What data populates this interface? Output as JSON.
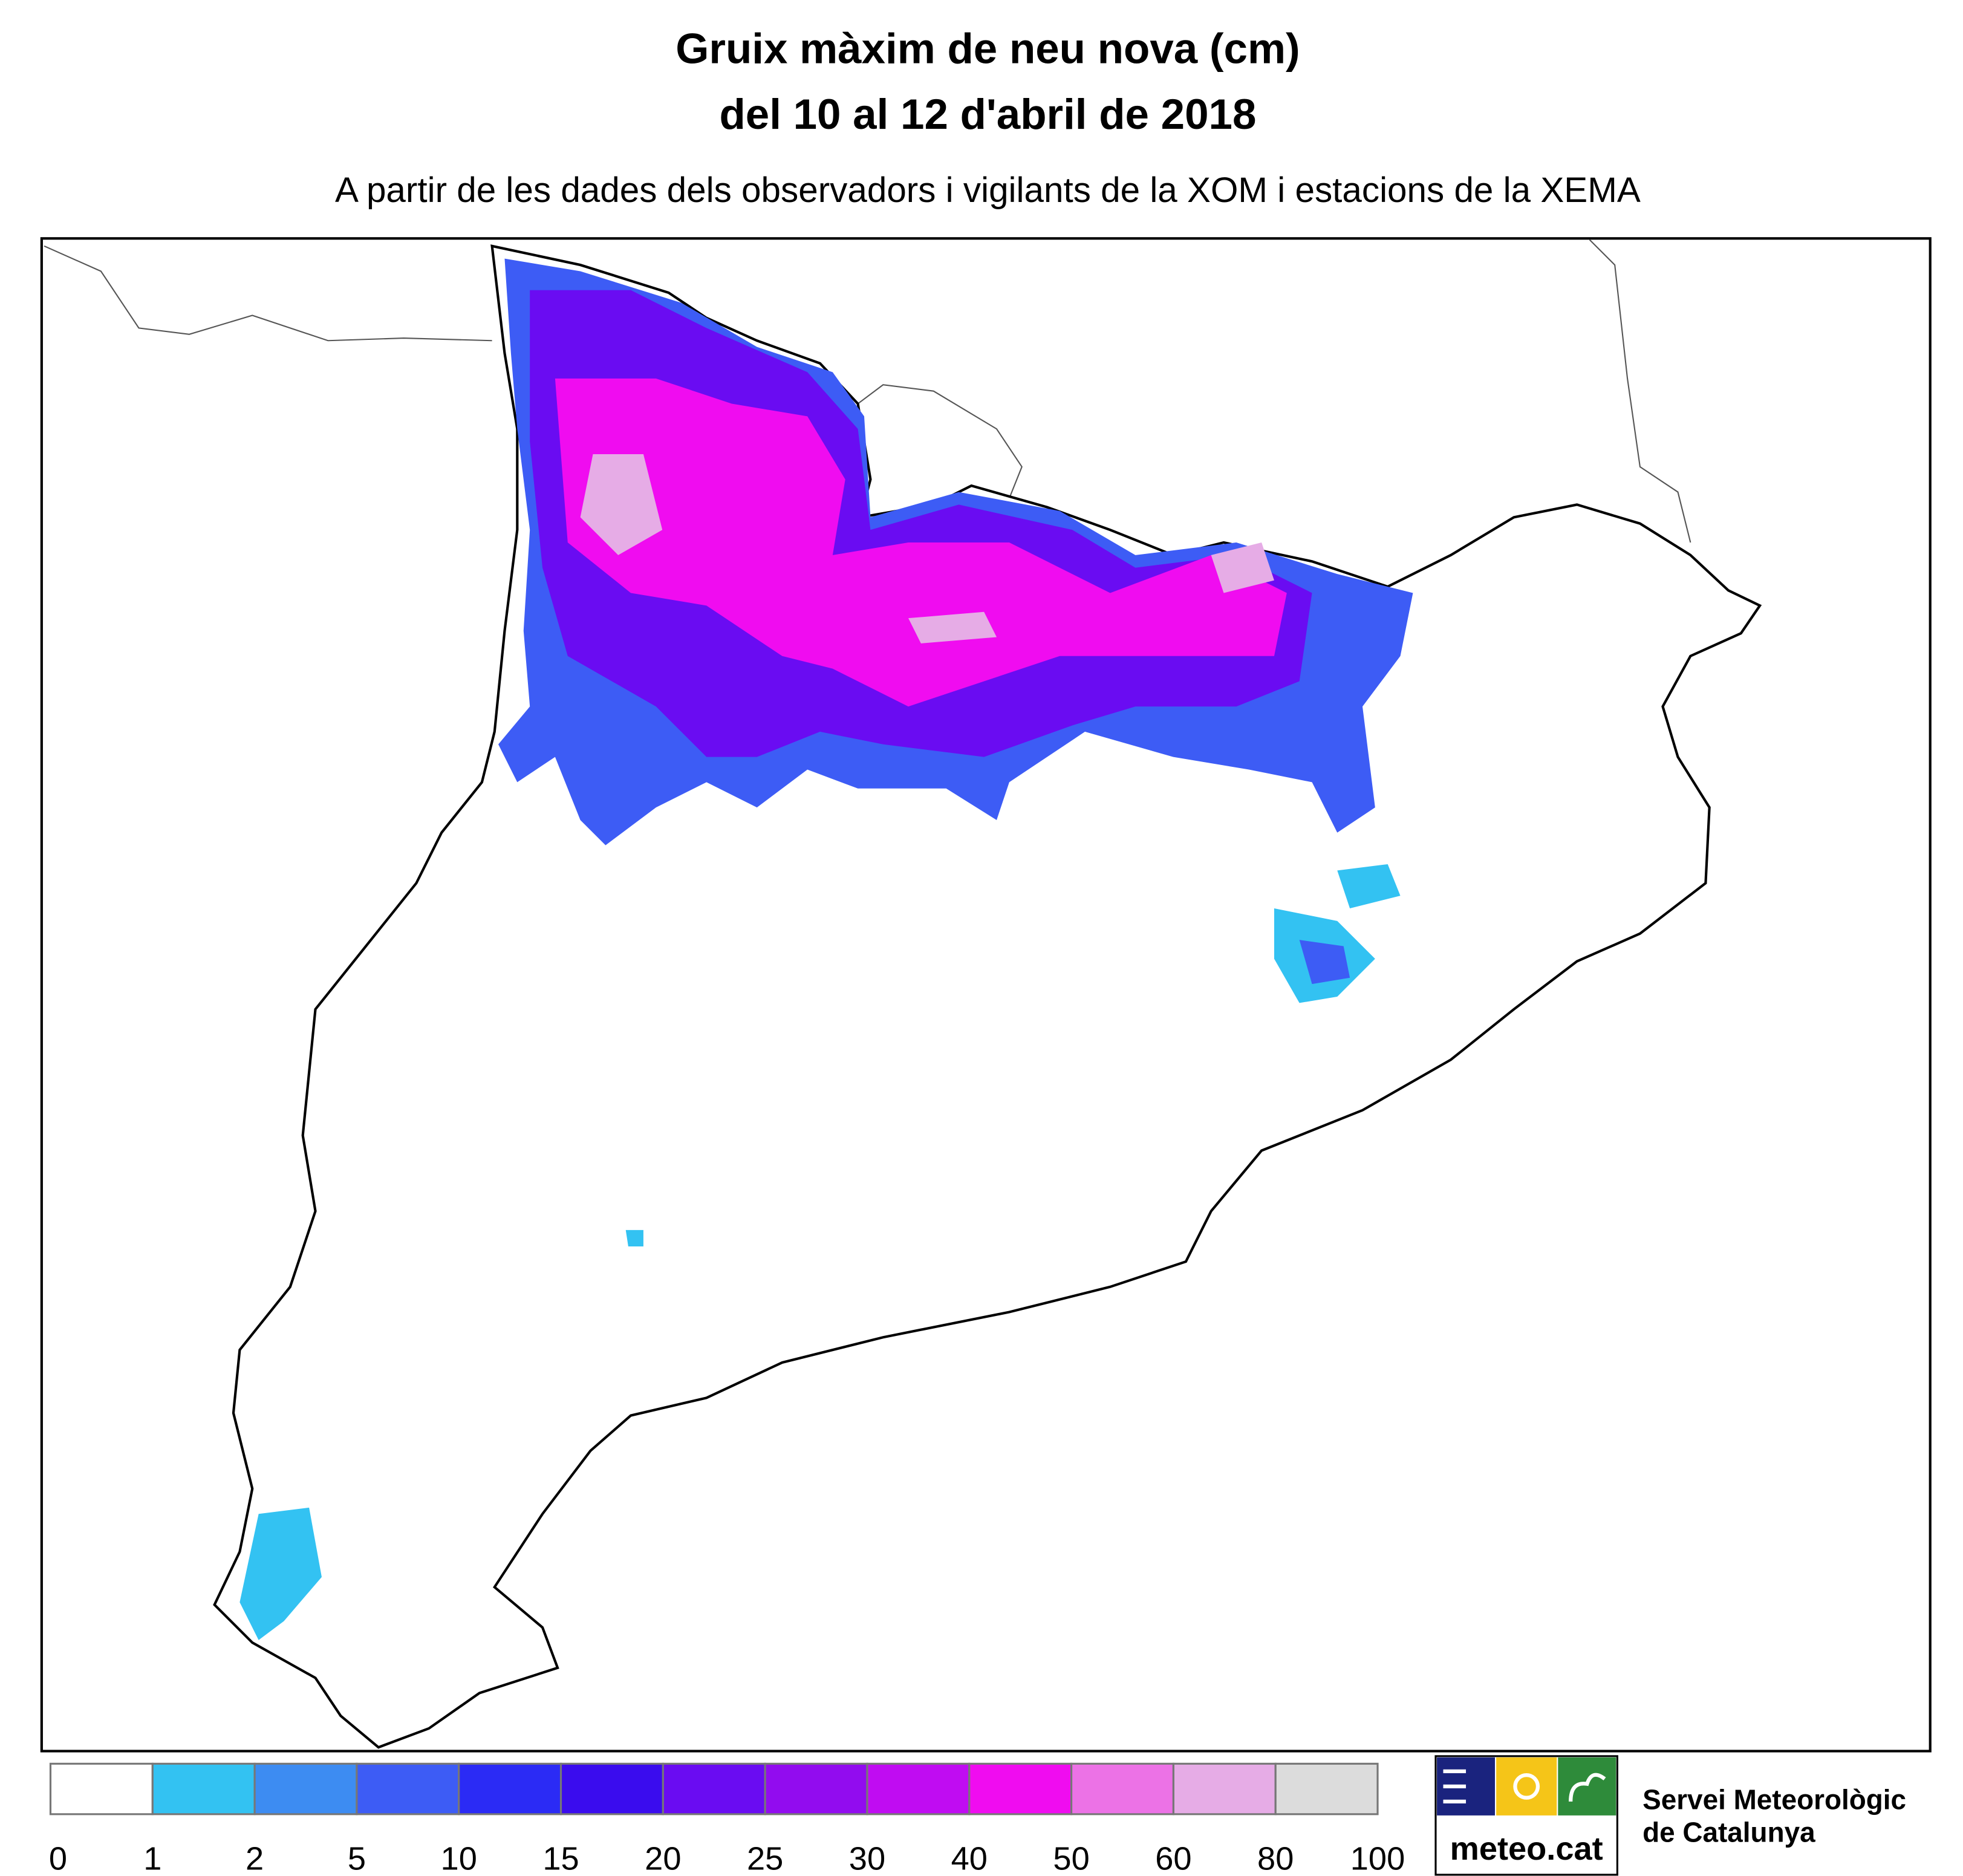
{
  "header": {
    "title": [
      "Gruix màxim de neu nova (cm)",
      "del 10 al 12 d'abril de 2018"
    ],
    "subtitle": "A partir de les dades dels observadors i vigilants de la XOM i estacions de la XEMA"
  },
  "legend": {
    "bins": [
      0,
      1,
      2,
      5,
      10,
      15,
      20,
      25,
      30,
      40,
      50,
      60,
      80,
      100
    ],
    "colors": [
      "#ffffff",
      "#33c2f2",
      "#3d8cf2",
      "#3d5cf5",
      "#2b2bf5",
      "#3a0cee",
      "#6a0cf2",
      "#920cef",
      "#c00cf2",
      "#f00cf0",
      "#ec72e6",
      "#e6ace6",
      "#dcdcdc"
    ]
  },
  "logo": {
    "brand": "meteo.cat",
    "org": [
      "Servei Meteorològic",
      "de Catalunya"
    ]
  }
}
